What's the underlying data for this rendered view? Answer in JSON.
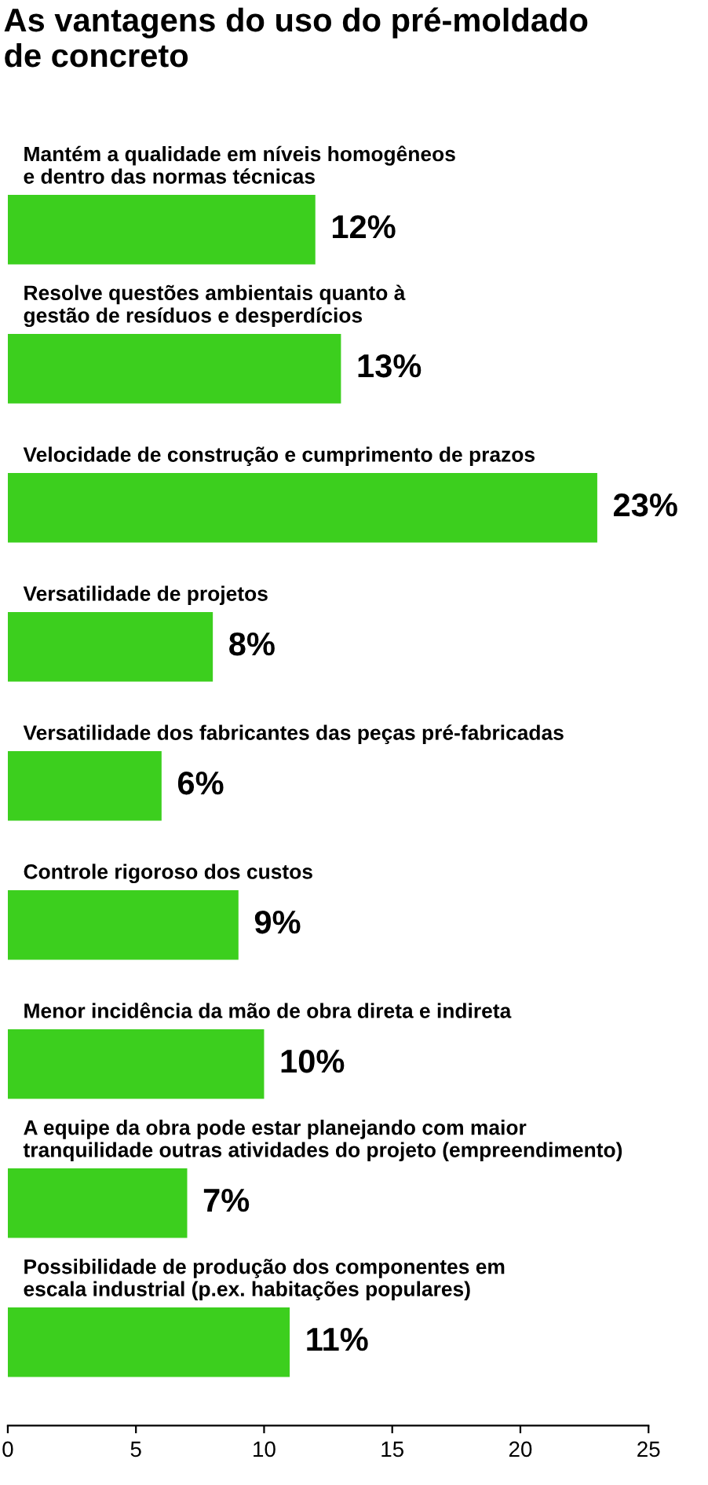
{
  "chart_data": {
    "type": "bar",
    "orientation": "horizontal",
    "title": "As vantagens do uso do pré-moldado\nde concreto",
    "categories": [
      "Mantém a qualidade em níveis homogêneos\ne dentro das normas técnicas",
      "Resolve questões ambientais quanto à\ngestão de resíduos e desperdícios",
      "Velocidade de construção e cumprimento de prazos",
      "Versatilidade de projetos",
      "Versatilidade dos fabricantes das peças pré-fabricadas",
      "Controle rigoroso dos custos",
      "Menor incidência da mão de obra direta e indireta",
      "A equipe da obra pode estar planejando com maior\ntranquilidade outras atividades do projeto (empreendimento)",
      "Possibilidade de produção dos componentes em\nescala industrial (p.ex. habitações populares)"
    ],
    "values": [
      12,
      13,
      23,
      8,
      6,
      9,
      10,
      7,
      11
    ],
    "value_labels": [
      "12%",
      "13%",
      "23%",
      "8%",
      "6%",
      "9%",
      "10%",
      "7%",
      "11%"
    ],
    "color": "#3ccf1e",
    "xlim": [
      0,
      25
    ],
    "xticks": [
      0,
      5,
      10,
      15,
      20,
      25
    ],
    "grid": false,
    "legend": false
  }
}
